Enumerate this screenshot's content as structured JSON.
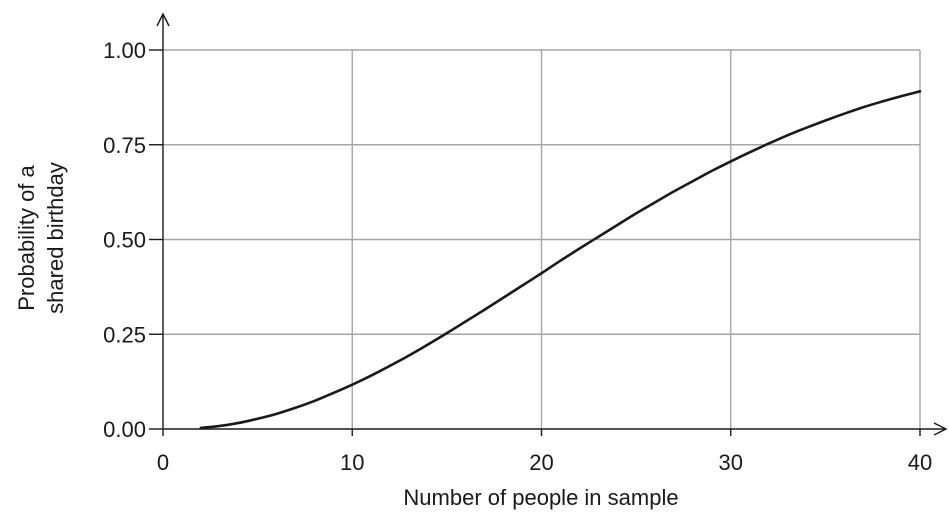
{
  "chart_data": {
    "type": "line",
    "title": "",
    "xlabel": "Number of people in sample",
    "ylabel_lines": [
      "Probability of a",
      "shared birthday"
    ],
    "xlim": [
      0,
      40
    ],
    "ylim": [
      0,
      1
    ],
    "x_ticks": [
      0,
      10,
      20,
      30,
      40
    ],
    "x_tick_labels": [
      "0",
      "10",
      "20",
      "30",
      "40"
    ],
    "y_ticks": [
      0,
      0.25,
      0.5,
      0.75,
      1
    ],
    "y_tick_labels": [
      "0.00",
      "0.25",
      "0.50",
      "0.75",
      "1.00"
    ],
    "grid": true,
    "colors": {
      "line": "#1a1a1a",
      "grid": "#a6a6a6",
      "axis": "#1a1a1a"
    },
    "series": [
      {
        "x": [
          2,
          3,
          4,
          5,
          6,
          7,
          8,
          9,
          10,
          11,
          12,
          13,
          14,
          15,
          16,
          17,
          18,
          19,
          20,
          21,
          22,
          23,
          24,
          25,
          26,
          27,
          28,
          29,
          30,
          31,
          32,
          33,
          34,
          35,
          36,
          37,
          38,
          39,
          40
        ],
        "values": [
          0.003,
          0.008,
          0.016,
          0.027,
          0.04,
          0.056,
          0.074,
          0.095,
          0.117,
          0.141,
          0.167,
          0.194,
          0.223,
          0.253,
          0.284,
          0.315,
          0.347,
          0.379,
          0.411,
          0.444,
          0.476,
          0.507,
          0.538,
          0.569,
          0.598,
          0.627,
          0.654,
          0.681,
          0.706,
          0.73,
          0.753,
          0.775,
          0.795,
          0.814,
          0.832,
          0.849,
          0.864,
          0.878,
          0.891
        ]
      }
    ]
  }
}
